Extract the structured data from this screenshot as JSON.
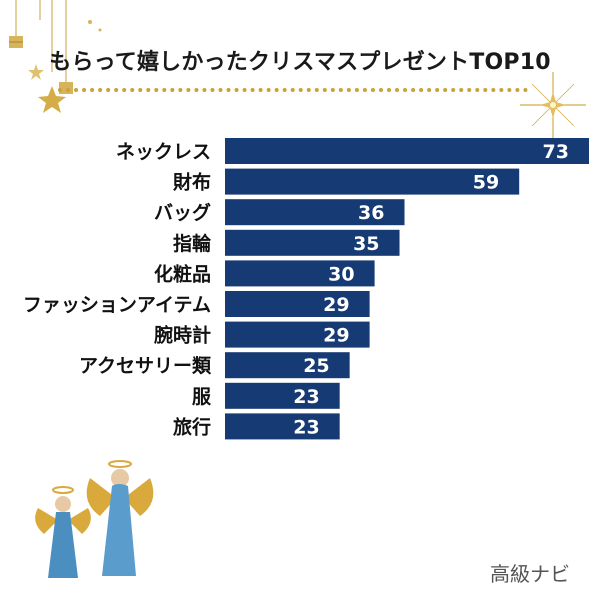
{
  "title": "もらって嬉しかったクリスマスプレゼントTOP10",
  "watermark": "高級ナビ",
  "colors": {
    "bar": "#163a73",
    "gold": "#c9a23c",
    "label": "#111111",
    "value": "#ffffff"
  },
  "decorations": {
    "top_left": "hanging-ornaments-icon",
    "top_right": "sparkle-star-icon",
    "bottom_left": "angel-figurines-icon"
  },
  "chart_data": {
    "type": "bar",
    "orientation": "horizontal",
    "title": "もらって嬉しかったクリスマスプレゼントTOP10",
    "categories": [
      "ネックレス",
      "財布",
      "バッグ",
      "指輪",
      "化粧品",
      "ファッションアイテム",
      "腕時計",
      "アクセサリー類",
      "服",
      "旅行"
    ],
    "values": [
      73,
      59,
      36,
      35,
      30,
      29,
      29,
      25,
      23,
      23
    ],
    "xlim": [
      0,
      73
    ],
    "grid": false,
    "legend": "none",
    "data_labels": true
  }
}
